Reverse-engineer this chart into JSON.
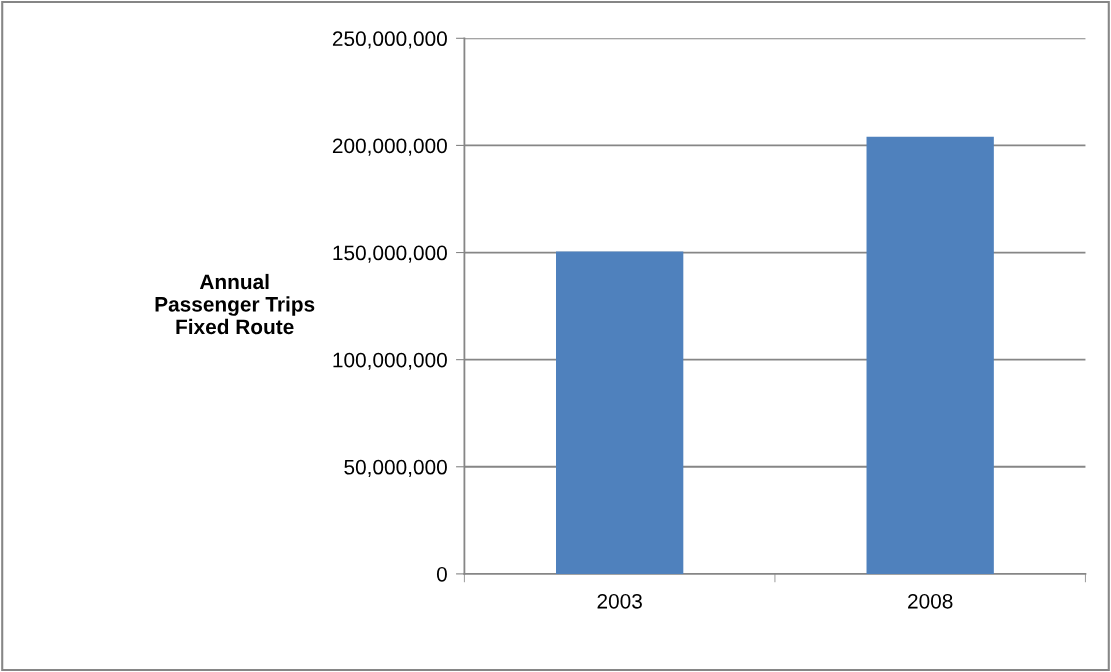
{
  "chart_data": {
    "type": "bar",
    "ylabel": "Annual\nPassenger Trips\nFixed Route",
    "categories": [
      "2003",
      "2008"
    ],
    "values": [
      150500000,
      204000000
    ],
    "color": "#4f81bd",
    "ylim": [
      0,
      250000000
    ],
    "yticks": [
      {
        "value": 0,
        "label": "0"
      },
      {
        "value": 50000000,
        "label": "50,000,000"
      },
      {
        "value": 100000000,
        "label": "100,000,000"
      },
      {
        "value": 150000000,
        "label": "150,000,000"
      },
      {
        "value": 200000000,
        "label": "200,000,000"
      },
      {
        "value": 250000000,
        "label": "250,000,000"
      }
    ],
    "grid": "y",
    "legend": false
  }
}
